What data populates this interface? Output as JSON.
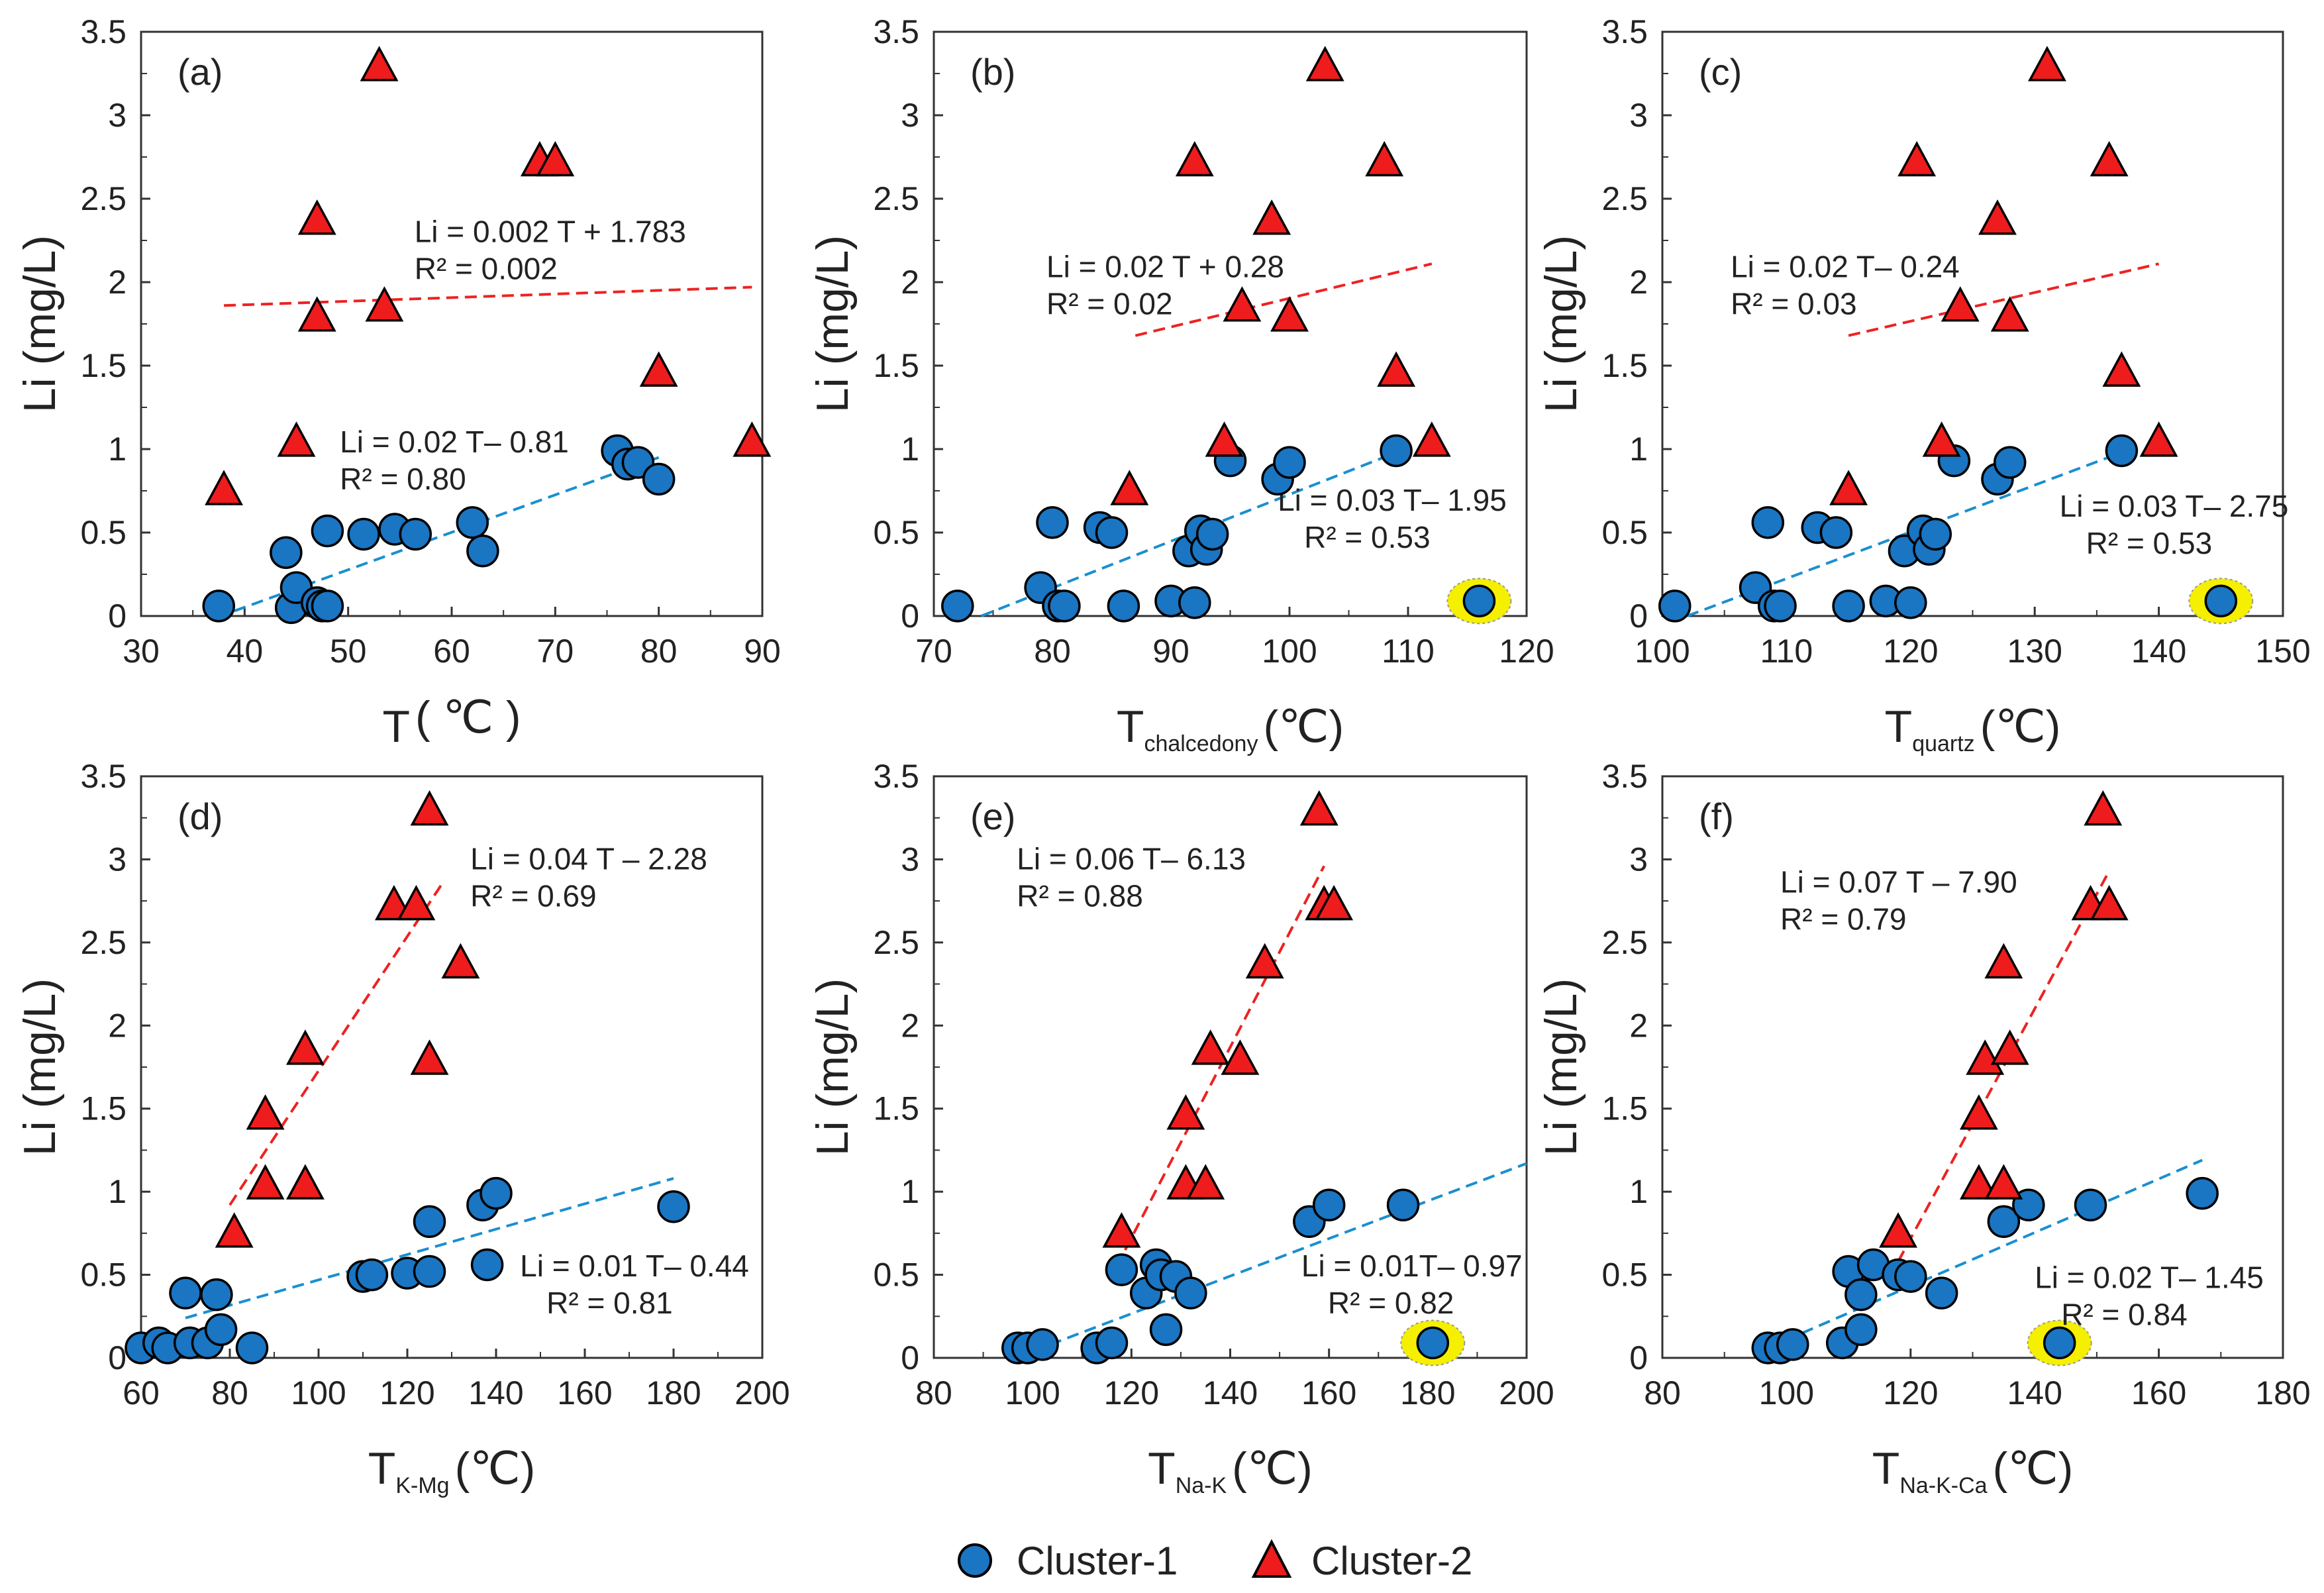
{
  "chart_data": [
    {
      "type": "scatter",
      "panel_label": "(a)",
      "xlabel_main": "T",
      "xlabel_sub": "",
      "xlabel_unit": "( ℃ )",
      "ylabel": "Li (mg/L)",
      "xlim": [
        30,
        90
      ],
      "xticks": [
        30,
        40,
        50,
        60,
        70,
        80,
        90
      ],
      "ylim": [
        0,
        3.5
      ],
      "yticks": [
        0,
        0.5,
        1,
        1.5,
        2,
        2.5,
        3,
        3.5
      ],
      "series": [
        {
          "name": "Cluster-1",
          "points": [
            [
              37.5,
              0.06
            ],
            [
              44,
              0.38
            ],
            [
              44.5,
              0.05
            ],
            [
              45,
              0.17
            ],
            [
              47,
              0.08
            ],
            [
              47.5,
              0.06
            ],
            [
              48,
              0.06
            ],
            [
              48,
              0.51
            ],
            [
              51.5,
              0.49
            ],
            [
              54.5,
              0.52
            ],
            [
              56.5,
              0.49
            ],
            [
              62,
              0.56
            ],
            [
              63,
              0.39
            ],
            [
              76,
              0.99
            ],
            [
              77,
              0.91
            ],
            [
              78,
              0.92
            ],
            [
              80,
              0.82
            ]
          ]
        },
        {
          "name": "Cluster-2",
          "points": [
            [
              38,
              0.75
            ],
            [
              45,
              1.04
            ],
            [
              47,
              2.37
            ],
            [
              47,
              1.79
            ],
            [
              53,
              3.29
            ],
            [
              53.5,
              1.85
            ],
            [
              68.5,
              2.72
            ],
            [
              70,
              2.72
            ],
            [
              80,
              1.46
            ],
            [
              89,
              1.04
            ]
          ]
        }
      ],
      "fits": [
        {
          "series": "Cluster-2",
          "x": [
            38,
            89
          ],
          "y": [
            1.86,
            1.97
          ],
          "eq": "Li = 0.002 T + 1.783",
          "r2": "R² = 0.002"
        },
        {
          "series": "Cluster-1",
          "x": [
            39,
            80
          ],
          "y": [
            0.03,
            0.95
          ],
          "eq": "Li = 0.02 T– 0.81",
          "r2": "R² = 0.80"
        }
      ],
      "highlight": null
    },
    {
      "type": "scatter",
      "panel_label": "(b)",
      "xlabel_main": "T",
      "xlabel_sub": "chalcedony",
      "xlabel_unit": "(℃)",
      "ylabel": "Li (mg/L)",
      "xlim": [
        70,
        120
      ],
      "xticks": [
        70,
        80,
        90,
        100,
        110,
        120
      ],
      "ylim": [
        0,
        3.5
      ],
      "yticks": [
        0,
        0.5,
        1,
        1.5,
        2,
        2.5,
        3,
        3.5
      ],
      "series": [
        {
          "name": "Cluster-1",
          "points": [
            [
              72,
              0.06
            ],
            [
              79,
              0.17
            ],
            [
              80,
              0.56
            ],
            [
              80.5,
              0.06
            ],
            [
              81,
              0.06
            ],
            [
              84,
              0.53
            ],
            [
              85,
              0.5
            ],
            [
              86,
              0.06
            ],
            [
              90,
              0.09
            ],
            [
              91.5,
              0.39
            ],
            [
              92,
              0.08
            ],
            [
              92.5,
              0.51
            ],
            [
              93,
              0.4
            ],
            [
              93.5,
              0.49
            ],
            [
              95,
              0.93
            ],
            [
              99,
              0.82
            ],
            [
              100,
              0.92
            ],
            [
              109,
              0.99
            ],
            [
              116,
              0.09
            ]
          ]
        },
        {
          "name": "Cluster-2",
          "points": [
            [
              86.5,
              0.75
            ],
            [
              92,
              2.72
            ],
            [
              94.5,
              1.04
            ],
            [
              96,
              1.85
            ],
            [
              98.5,
              2.37
            ],
            [
              100,
              1.79
            ],
            [
              103,
              3.29
            ],
            [
              108,
              2.72
            ],
            [
              109,
              1.46
            ],
            [
              112,
              1.04
            ]
          ]
        }
      ],
      "fits": [
        {
          "series": "Cluster-2",
          "x": [
            87,
            112
          ],
          "y": [
            1.68,
            2.11
          ],
          "eq": "Li = 0.02 T + 0.28",
          "r2": "R² = 0.02"
        },
        {
          "series": "Cluster-1",
          "x": [
            74,
            109
          ],
          "y": [
            0,
            0.98
          ],
          "eq": "Li = 0.03 T– 1.95",
          "r2": "R² = 0.53"
        }
      ],
      "highlight": [
        116,
        0.09
      ]
    },
    {
      "type": "scatter",
      "panel_label": "(c)",
      "xlabel_main": "T",
      "xlabel_sub": "quartz",
      "xlabel_unit": "(℃)",
      "ylabel": "Li (mg/L)",
      "xlim": [
        100,
        150
      ],
      "xticks": [
        100,
        110,
        120,
        130,
        140,
        150
      ],
      "ylim": [
        0,
        3.5
      ],
      "yticks": [
        0,
        0.5,
        1,
        1.5,
        2,
        2.5,
        3,
        3.5
      ],
      "series": [
        {
          "name": "Cluster-1",
          "points": [
            [
              101,
              0.06
            ],
            [
              107.5,
              0.17
            ],
            [
              108.5,
              0.56
            ],
            [
              109,
              0.06
            ],
            [
              109.5,
              0.06
            ],
            [
              112.5,
              0.53
            ],
            [
              114,
              0.5
            ],
            [
              115,
              0.06
            ],
            [
              118,
              0.09
            ],
            [
              119.5,
              0.39
            ],
            [
              120,
              0.08
            ],
            [
              121,
              0.51
            ],
            [
              121.5,
              0.4
            ],
            [
              122,
              0.49
            ],
            [
              123.5,
              0.93
            ],
            [
              127,
              0.82
            ],
            [
              128,
              0.92
            ],
            [
              137,
              0.99
            ],
            [
              145,
              0.09
            ]
          ]
        },
        {
          "name": "Cluster-2",
          "points": [
            [
              115,
              0.75
            ],
            [
              120.5,
              2.72
            ],
            [
              122.5,
              1.04
            ],
            [
              124,
              1.85
            ],
            [
              127,
              2.37
            ],
            [
              128,
              1.79
            ],
            [
              131,
              3.29
            ],
            [
              136,
              2.72
            ],
            [
              137,
              1.46
            ],
            [
              140,
              1.04
            ]
          ]
        }
      ],
      "fits": [
        {
          "series": "Cluster-2",
          "x": [
            115,
            140
          ],
          "y": [
            1.68,
            2.11
          ],
          "eq": "Li = 0.02 T– 0.24",
          "r2": "R² = 0.03"
        },
        {
          "series": "Cluster-1",
          "x": [
            102,
            137
          ],
          "y": [
            0,
            0.98
          ],
          "eq": "Li = 0.03 T– 2.75",
          "r2": "R² = 0.53"
        }
      ],
      "highlight": [
        145,
        0.09
      ]
    },
    {
      "type": "scatter",
      "panel_label": "(d)",
      "xlabel_main": "T",
      "xlabel_sub": "K-Mg",
      "xlabel_unit": "(℃)",
      "ylabel": "Li (mg/L)",
      "xlim": [
        60,
        200
      ],
      "xticks": [
        60,
        80,
        100,
        120,
        140,
        160,
        180,
        200
      ],
      "ylim": [
        0,
        3.5
      ],
      "yticks": [
        0,
        0.5,
        1,
        1.5,
        2,
        2.5,
        3,
        3.5
      ],
      "series": [
        {
          "name": "Cluster-1",
          "points": [
            [
              60,
              0.06
            ],
            [
              64,
              0.09
            ],
            [
              66,
              0.06
            ],
            [
              70,
              0.39
            ],
            [
              71,
              0.09
            ],
            [
              75,
              0.09
            ],
            [
              77,
              0.38
            ],
            [
              78,
              0.17
            ],
            [
              85,
              0.06
            ],
            [
              110,
              0.49
            ],
            [
              112,
              0.5
            ],
            [
              120,
              0.51
            ],
            [
              125,
              0.82
            ],
            [
              125,
              0.52
            ],
            [
              137,
              0.92
            ],
            [
              138,
              0.56
            ],
            [
              140,
              0.99
            ],
            [
              180,
              0.91
            ]
          ]
        },
        {
          "name": "Cluster-2",
          "points": [
            [
              81,
              0.75
            ],
            [
              88,
              1.46
            ],
            [
              88,
              1.04
            ],
            [
              97,
              1.85
            ],
            [
              97,
              1.04
            ],
            [
              117,
              2.72
            ],
            [
              122,
              2.72
            ],
            [
              125,
              1.79
            ],
            [
              125,
              3.29
            ],
            [
              132,
              2.37
            ]
          ]
        }
      ],
      "fits": [
        {
          "series": "Cluster-2",
          "x": [
            80,
            128
          ],
          "y": [
            0.92,
            2.86
          ],
          "eq": "Li = 0.04 T  – 2.28",
          "r2": "R² = 0.69"
        },
        {
          "series": "Cluster-1",
          "x": [
            70,
            180
          ],
          "y": [
            0.24,
            1.08
          ],
          "eq": "Li = 0.01 T– 0.44",
          "r2": "R² = 0.81"
        }
      ],
      "highlight": [
        71,
        0.09
      ]
    },
    {
      "type": "scatter",
      "panel_label": "(e)",
      "xlabel_main": "T",
      "xlabel_sub": "Na-K",
      "xlabel_unit": "(℃)",
      "ylabel": "Li (mg/L)",
      "xlim": [
        80,
        200
      ],
      "xticks": [
        80,
        100,
        120,
        140,
        160,
        180,
        200
      ],
      "ylim": [
        0,
        3.5
      ],
      "yticks": [
        0,
        0.5,
        1,
        1.5,
        2,
        2.5,
        3,
        3.5
      ],
      "series": [
        {
          "name": "Cluster-1",
          "points": [
            [
              97,
              0.06
            ],
            [
              99,
              0.06
            ],
            [
              102,
              0.08
            ],
            [
              113,
              0.06
            ],
            [
              116,
              0.09
            ],
            [
              118,
              0.53
            ],
            [
              123,
              0.39
            ],
            [
              125,
              0.56
            ],
            [
              126,
              0.5
            ],
            [
              127,
              0.17
            ],
            [
              129,
              0.49
            ],
            [
              132,
              0.39
            ],
            [
              156,
              0.82
            ],
            [
              160,
              0.92
            ],
            [
              175,
              0.92
            ],
            [
              181,
              0.09
            ]
          ]
        },
        {
          "name": "Cluster-2",
          "points": [
            [
              118,
              0.75
            ],
            [
              131,
              1.46
            ],
            [
              131,
              1.04
            ],
            [
              135,
              1.04
            ],
            [
              136,
              1.85
            ],
            [
              142,
              1.79
            ],
            [
              147,
              2.37
            ],
            [
              158,
              3.29
            ],
            [
              159,
              2.72
            ],
            [
              161,
              2.72
            ]
          ]
        }
      ],
      "fits": [
        {
          "series": "Cluster-2",
          "x": [
            117,
            159
          ],
          "y": [
            0.55,
            2.96
          ],
          "eq": "Li = 0.06 T– 6.13",
          "r2": "R² = 0.88"
        },
        {
          "series": "Cluster-1",
          "x": [
            100,
            200
          ],
          "y": [
            0.04,
            1.17
          ],
          "eq": "Li = 0.01T– 0.97",
          "r2": "R² = 0.82"
        }
      ],
      "highlight": [
        181,
        0.09
      ]
    },
    {
      "type": "scatter",
      "panel_label": "(f)",
      "xlabel_main": "T",
      "xlabel_sub": "Na-K-Ca",
      "xlabel_unit": "(℃)",
      "ylabel": "Li (mg/L)",
      "xlim": [
        80,
        180
      ],
      "xticks": [
        80,
        100,
        120,
        140,
        160,
        180
      ],
      "ylim": [
        0,
        3.5
      ],
      "yticks": [
        0,
        0.5,
        1,
        1.5,
        2,
        2.5,
        3,
        3.5
      ],
      "series": [
        {
          "name": "Cluster-1",
          "points": [
            [
              97,
              0.06
            ],
            [
              99,
              0.06
            ],
            [
              101,
              0.08
            ],
            [
              109,
              0.09
            ],
            [
              110,
              0.52
            ],
            [
              112,
              0.38
            ],
            [
              112,
              0.17
            ],
            [
              114,
              0.56
            ],
            [
              118,
              0.5
            ],
            [
              120,
              0.49
            ],
            [
              125,
              0.39
            ],
            [
              135,
              0.82
            ],
            [
              139,
              0.92
            ],
            [
              149,
              0.92
            ],
            [
              167,
              0.99
            ],
            [
              144,
              0.09
            ]
          ]
        },
        {
          "name": "Cluster-2",
          "points": [
            [
              118,
              0.75
            ],
            [
              131,
              1.46
            ],
            [
              131,
              1.04
            ],
            [
              132,
              1.79
            ],
            [
              135,
              1.04
            ],
            [
              135,
              2.37
            ],
            [
              136,
              1.85
            ],
            [
              149,
              2.72
            ],
            [
              151,
              3.29
            ],
            [
              152,
              2.72
            ]
          ]
        }
      ],
      "fits": [
        {
          "series": "Cluster-2",
          "x": [
            118,
            152
          ],
          "y": [
            0.58,
            2.93
          ],
          "eq": "Li = 0.07 T  – 7.90",
          "r2": "R² = 0.79"
        },
        {
          "series": "Cluster-1",
          "x": [
            97,
            167
          ],
          "y": [
            0.06,
            1.19
          ],
          "eq": "Li = 0.02 T– 1.45",
          "r2": "R² = 0.84"
        }
      ],
      "highlight": [
        144,
        0.09
      ]
    }
  ],
  "legend": {
    "items": [
      {
        "label": "Cluster-1",
        "marker": "circle",
        "color": "#1a75c2"
      },
      {
        "label": "Cluster-2",
        "marker": "triangle",
        "color": "#ee1c1c"
      }
    ]
  },
  "colors": {
    "cluster1": "#1a75c2",
    "cluster2": "#ee1c1c",
    "fit1": "#1a8fd0",
    "fit2": "#ee2222",
    "highlight": "#f5ef00"
  }
}
